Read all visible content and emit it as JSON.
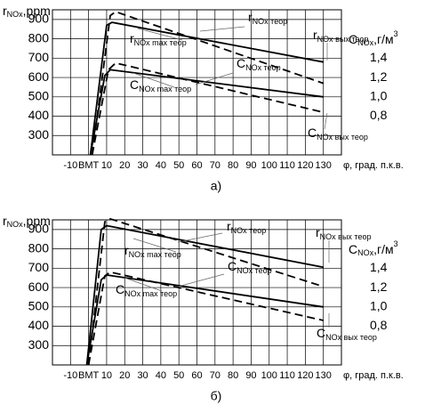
{
  "chart_data": [
    {
      "type": "line",
      "caption": "а)",
      "y_title": {
        "text": "r",
        "sub": "NOx",
        "unit": ",ppm"
      },
      "y2_title": {
        "text": "C",
        "sub": "NOx",
        "unit": ",г/м",
        "sup": "3"
      },
      "x_title": "φ, град. п.к.в.",
      "xlim": [
        -20,
        140
      ],
      "xticks": [
        -10,
        {
          "value": 0,
          "label": "ВМТ"
        },
        10,
        20,
        30,
        40,
        50,
        60,
        70,
        80,
        90,
        100,
        110,
        120,
        130
      ],
      "ylim": [
        200,
        950
      ],
      "yticks": [
        300,
        400,
        500,
        600,
        700,
        800,
        900
      ],
      "y2lim": [
        0.4,
        1.9
      ],
      "y2ticks": [
        {
          "value": 0.8,
          "label": "0,8"
        },
        {
          "value": 1.0,
          "label": "1,0"
        },
        {
          "value": 1.2,
          "label": "1,2"
        },
        {
          "value": 1.4,
          "label": "1,4"
        }
      ],
      "grid": true,
      "series": [
        {
          "color": "#000000",
          "dashed": false,
          "x": [
            1,
            10,
            13,
            130
          ],
          "values": [
            200,
            870,
            885,
            680
          ]
        },
        {
          "color": "#000000",
          "dashed": true,
          "x": [
            2,
            12,
            15,
            130
          ],
          "values": [
            200,
            920,
            940,
            570
          ]
        },
        {
          "color": "#000000",
          "dashed": false,
          "axis": "y2",
          "x": [
            1,
            9,
            12,
            130
          ],
          "values": [
            0.4,
            1.22,
            1.28,
            1.0
          ]
        },
        {
          "color": "#000000",
          "dashed": true,
          "axis": "y2",
          "x": [
            2,
            11,
            15,
            130
          ],
          "values": [
            0.4,
            1.28,
            1.35,
            0.84
          ]
        }
      ],
      "annotations": [
        {
          "text": "r",
          "sub": "NOx max теор"
        },
        {
          "text": "r",
          "sub": "NOx теор"
        },
        {
          "text": "r",
          "sub": "NOx вых теор"
        },
        {
          "text": "C",
          "sub": "NOx теор"
        },
        {
          "text": "C",
          "sub": "NOx max теор"
        },
        {
          "text": "C",
          "sub": "NOx вых теор"
        }
      ]
    },
    {
      "type": "line",
      "caption": "б)",
      "y_title": {
        "text": "r",
        "sub": "NOx",
        "unit": ",ppm"
      },
      "y2_title": {
        "text": "C",
        "sub": "NOx",
        "unit": ",г/м",
        "sup": "3"
      },
      "x_title": "φ, град. п.к.в.",
      "xlim": [
        -20,
        140
      ],
      "xticks": [
        -10,
        {
          "value": 0,
          "label": "ВМТ"
        },
        10,
        20,
        30,
        40,
        50,
        60,
        70,
        80,
        90,
        100,
        110,
        120,
        130
      ],
      "ylim": [
        200,
        950
      ],
      "yticks": [
        300,
        400,
        500,
        600,
        700,
        800,
        900
      ],
      "y2lim": [
        0.4,
        1.9
      ],
      "y2ticks": [
        {
          "value": 0.8,
          "label": "0,8"
        },
        {
          "value": 1.0,
          "label": "1,0"
        },
        {
          "value": 1.2,
          "label": "1,2"
        },
        {
          "value": 1.4,
          "label": "1,4"
        }
      ],
      "grid": true,
      "series": [
        {
          "color": "#000000",
          "dashed": false,
          "x": [
            -1,
            7,
            10,
            130
          ],
          "values": [
            200,
            900,
            920,
            705
          ]
        },
        {
          "color": "#000000",
          "dashed": true,
          "x": [
            0,
            9,
            12,
            130
          ],
          "values": [
            200,
            940,
            955,
            605
          ]
        },
        {
          "color": "#000000",
          "dashed": false,
          "axis": "y2",
          "x": [
            -1,
            7,
            10,
            130
          ],
          "values": [
            0.4,
            1.28,
            1.33,
            1.0
          ]
        },
        {
          "color": "#000000",
          "dashed": true,
          "axis": "y2",
          "x": [
            0,
            9,
            12,
            130
          ],
          "values": [
            0.4,
            1.32,
            1.36,
            0.86
          ]
        }
      ],
      "annotations": [
        {
          "text": "r",
          "sub": "NOx max теор"
        },
        {
          "text": "r",
          "sub": "NOx теор"
        },
        {
          "text": "r",
          "sub": "NOx вых теор"
        },
        {
          "text": "C",
          "sub": "NOx теор"
        },
        {
          "text": "C",
          "sub": "NOx max теор"
        },
        {
          "text": "C",
          "sub": "NOx вых теор"
        }
      ]
    }
  ]
}
